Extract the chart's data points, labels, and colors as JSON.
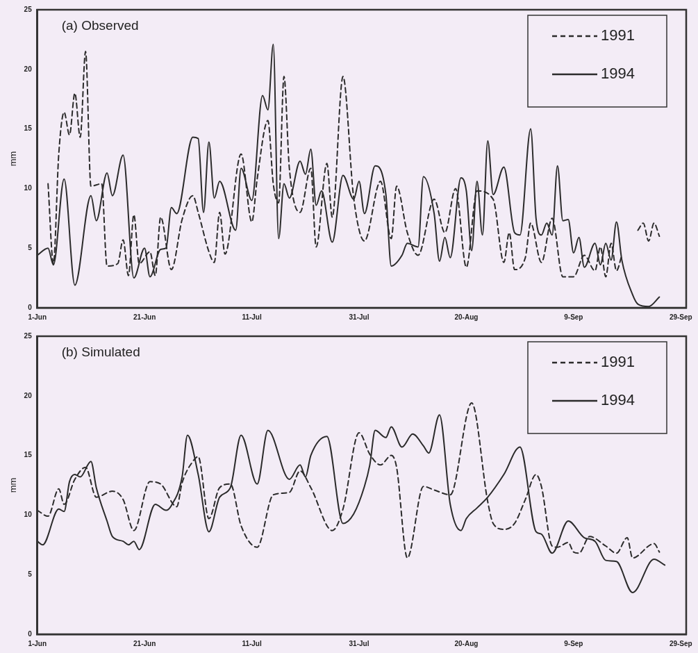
{
  "chart_data": [
    {
      "type": "line",
      "title": "(a) Observed",
      "ylabel": "mm",
      "legend": "top right",
      "xlim": [
        "--06-01",
        "--09-30"
      ],
      "xticks": [
        {
          "value": "--06-01",
          "label": "1-Jun"
        },
        {
          "value": "--06-21",
          "label": "21-Jun"
        },
        {
          "value": "--07-11",
          "label": "11-Jul"
        },
        {
          "value": "--07-31",
          "label": "31-Jul"
        },
        {
          "value": "--08-20",
          "label": "20-Aug"
        },
        {
          "value": "--09-09",
          "label": "9-Sep"
        },
        {
          "value": "--09-29",
          "label": "29-Sep"
        }
      ],
      "ylim": [
        0,
        25
      ],
      "yticks": [
        0,
        5,
        10,
        15,
        20,
        25
      ],
      "series": [
        {
          "name": "1991",
          "color": "#2b2b2b",
          "line_style": "dashed",
          "x": [
            "--06-03",
            "--06-04",
            "--06-05",
            "--06-06",
            "--06-07",
            "--06-08",
            "--06-09",
            "--06-10",
            "--06-11",
            "--06-13",
            "--06-14",
            "--06-16",
            "--06-17",
            "--06-18",
            "--06-19",
            "--06-20",
            "--06-22",
            "--06-23",
            "--06-24",
            "--06-26",
            "--06-28",
            "--06-30",
            "--07-01",
            "--07-03",
            "--07-04",
            "--07-05",
            "--07-06",
            "--07-09",
            "--07-11",
            "--07-12",
            "--07-14",
            "--07-15",
            "--07-16",
            "--07-17",
            "--07-18",
            "--07-20",
            "--07-22",
            "--07-23",
            "--07-25",
            "--07-26",
            "--07-28",
            "--07-30",
            "--08-01",
            "--08-04",
            "--08-06",
            "--08-07",
            "--08-09",
            "--08-11",
            "--08-14",
            "--08-16",
            "--08-18",
            "--08-20",
            "--08-22",
            "--08-25",
            "--08-27",
            "--08-28",
            "--08-29",
            "--08-31",
            "--09-01",
            "--09-03",
            "--09-05",
            "--09-07",
            "--09-09",
            "--09-11",
            "--09-13",
            "--09-14",
            "--09-15",
            "--09-16",
            "--09-17",
            "--09-18",
            "--09-19",
            "--09-21",
            "--09-22",
            "--09-23",
            "--09-24",
            "--09-25"
          ],
          "values": [
            10.4,
            3.7,
            12.9,
            16.4,
            14.5,
            18.0,
            14.3,
            21.5,
            10.2,
            10.4,
            3.5,
            3.7,
            5.7,
            2.7,
            7.8,
            3.7,
            4.7,
            2.7,
            7.6,
            3.2,
            7.4,
            9.4,
            8.0,
            4.7,
            3.8,
            8.0,
            4.5,
            12.9,
            7.2,
            10.8,
            15.7,
            10.4,
            8.8,
            19.4,
            11.7,
            8.0,
            11.7,
            5.1,
            12.1,
            7.6,
            19.4,
            9.2,
            5.6,
            10.6,
            5.8,
            10.2,
            6.3,
            4.4,
            9.1,
            6.3,
            10.0,
            3.4,
            9.8,
            9.1,
            3.8,
            6.3,
            3.2,
            4.2,
            7.1,
            3.8,
            7.5,
            2.6,
            2.6,
            4.4,
            3.1,
            5.1,
            2.6,
            5.4,
            3.1,
            4.4,
            null,
            6.5,
            7.1,
            5.6,
            7.1,
            6.0
          ]
        },
        {
          "name": "1994",
          "color": "#2b2b2b",
          "line_style": "solid",
          "x": [
            "--06-01",
            "--06-03",
            "--06-04",
            "--06-06",
            "--06-08",
            "--06-11",
            "--06-12",
            "--06-14",
            "--06-15",
            "--06-17",
            "--06-19",
            "--06-21",
            "--06-22",
            "--06-24",
            "--06-25",
            "--06-26",
            "--06-27",
            "--06-30",
            "--07-01",
            "--07-02",
            "--07-03",
            "--07-04",
            "--07-05",
            "--07-08",
            "--07-09",
            "--07-11",
            "--07-13",
            "--07-14",
            "--07-15",
            "--07-16",
            "--07-17",
            "--07-18",
            "--07-20",
            "--07-21",
            "--07-22",
            "--07-23",
            "--07-24",
            "--07-26",
            "--07-28",
            "--07-30",
            "--07-31",
            "--08-01",
            "--08-03",
            "--08-05",
            "--08-06",
            "--08-08",
            "--08-09",
            "--08-11",
            "--08-12",
            "--08-14",
            "--08-15",
            "--08-16",
            "--08-17",
            "--08-19",
            "--08-20",
            "--08-21",
            "--08-22",
            "--08-23",
            "--08-24",
            "--08-25",
            "--08-27",
            "--08-29",
            "--08-30",
            "--09-01",
            "--09-02",
            "--09-03",
            "--09-04",
            "--09-05",
            "--09-06",
            "--09-07",
            "--09-08",
            "--09-09",
            "--09-10",
            "--09-11",
            "--09-13",
            "--09-14",
            "--09-15",
            "--09-16",
            "--09-17",
            "--09-18",
            "--09-20",
            "--09-21",
            "--09-23",
            "--09-25"
          ],
          "values": [
            4.4,
            5.0,
            3.6,
            10.8,
            1.9,
            9.4,
            7.3,
            11.3,
            9.4,
            12.8,
            2.5,
            5.0,
            2.6,
            4.9,
            5.0,
            8.4,
            7.9,
            14.3,
            14.2,
            8.0,
            13.9,
            9.2,
            10.6,
            6.5,
            11.7,
            9.0,
            17.8,
            16.6,
            22.1,
            5.8,
            10.4,
            9.2,
            12.3,
            11.2,
            13.3,
            8.6,
            9.8,
            5.5,
            11.1,
            9.1,
            10.6,
            7.9,
            11.9,
            9.5,
            3.5,
            4.4,
            5.4,
            5.1,
            11.0,
            7.9,
            3.9,
            5.9,
            4.2,
            10.9,
            9.8,
            4.8,
            10.6,
            6.1,
            14.0,
            9.5,
            11.8,
            6.3,
            6.1,
            15.0,
            7.5,
            6.1,
            7.1,
            6.1,
            11.9,
            7.3,
            7.4,
            4.6,
            5.9,
            3.4,
            5.4,
            3.6,
            5.4,
            4.0,
            7.2,
            4.0,
            1.1,
            0.3,
            0.1,
            0.9
          ]
        }
      ]
    },
    {
      "type": "line",
      "title": "(b) Simulated",
      "ylabel": "mm",
      "legend": "top right",
      "xlim": [
        "--06-01",
        "--09-30"
      ],
      "xticks": [
        {
          "value": "--06-01",
          "label": "1-Jun"
        },
        {
          "value": "--06-21",
          "label": "21-Jun"
        },
        {
          "value": "--07-11",
          "label": "11-Jul"
        },
        {
          "value": "--07-31",
          "label": "31-Jul"
        },
        {
          "value": "--08-20",
          "label": "20-Aug"
        },
        {
          "value": "--09-09",
          "label": "9-Sep"
        },
        {
          "value": "--09-29",
          "label": "29-Sep"
        }
      ],
      "ylim": [
        0,
        25
      ],
      "yticks": [
        0,
        5,
        10,
        15,
        20,
        25
      ],
      "series": [
        {
          "name": "1991",
          "color": "#2b2b2b",
          "line_style": "dashed",
          "x": [
            "--06-01",
            "--06-03",
            "--06-05",
            "--06-06",
            "--06-08",
            "--06-10",
            "--06-12",
            "--06-15",
            "--06-17",
            "--06-19",
            "--06-22",
            "--06-24",
            "--06-27",
            "--06-28",
            "--06-30",
            "--07-01",
            "--07-03",
            "--07-05",
            "--07-07",
            "--07-09",
            "--07-12",
            "--07-15",
            "--07-18",
            "--07-20",
            "--07-22",
            "--07-26",
            "--07-28",
            "--07-31",
            "--08-02",
            "--08-04",
            "--08-06",
            "--08-07",
            "--08-09",
            "--08-12",
            "--08-14",
            "--08-17",
            "--08-21",
            "--08-24",
            "--08-25",
            "--08-27",
            "--08-29",
            "--08-31",
            "--09-02",
            "--09-03",
            "--09-05",
            "--09-06",
            "--09-08",
            "--09-09",
            "--09-10",
            "--09-12",
            "--09-15",
            "--09-17",
            "--09-19",
            "--09-20",
            "--09-24",
            "--09-25"
          ],
          "values": [
            10.4,
            9.9,
            12.2,
            10.9,
            13.0,
            14.0,
            11.5,
            12.0,
            11.3,
            8.7,
            12.8,
            12.6,
            10.7,
            12.7,
            14.5,
            14.9,
            9.7,
            12.3,
            12.6,
            9.1,
            7.3,
            11.7,
            11.9,
            13.7,
            12.3,
            8.7,
            10.5,
            16.9,
            15.1,
            14.2,
            15.0,
            14.0,
            6.4,
            12.4,
            12.1,
            11.7,
            19.4,
            11.1,
            9.3,
            8.8,
            9.3,
            11.3,
            13.4,
            12.4,
            7.4,
            7.3,
            7.7,
            6.9,
            6.8,
            8.2,
            7.4,
            6.8,
            8.1,
            6.4,
            7.6,
            6.9
          ]
        },
        {
          "name": "1994",
          "color": "#2b2b2b",
          "line_style": "solid",
          "x": [
            "--06-01",
            "--06-02",
            "--06-05",
            "--06-06",
            "--06-07",
            "--06-08",
            "--06-09",
            "--06-11",
            "--06-12",
            "--06-14",
            "--06-15",
            "--06-17",
            "--06-18",
            "--06-19",
            "--06-20",
            "--06-23",
            "--06-25",
            "--06-26",
            "--06-28",
            "--06-29",
            "--07-01",
            "--07-03",
            "--07-05",
            "--07-07",
            "--07-09",
            "--07-12",
            "--07-14",
            "--07-18",
            "--07-20",
            "--07-21",
            "--07-22",
            "--07-25",
            "--07-28",
            "--07-30",
            "--08-01",
            "--08-02",
            "--08-03",
            "--08-05",
            "--08-06",
            "--08-08",
            "--08-10",
            "--08-12",
            "--08-13",
            "--08-15",
            "--08-17",
            "--08-19",
            "--08-20",
            "--08-22",
            "--08-24",
            "--08-27",
            "--08-30",
            "--09-02",
            "--09-03",
            "--09-05",
            "--09-08",
            "--09-11",
            "--09-13",
            "--09-15",
            "--09-17",
            "--09-20",
            "--09-24",
            "--09-26"
          ],
          "values": [
            7.8,
            7.5,
            10.5,
            10.3,
            12.8,
            13.4,
            13.2,
            14.5,
            12.3,
            9.5,
            8.2,
            7.8,
            7.5,
            7.8,
            7.1,
            10.9,
            10.4,
            10.8,
            13.2,
            16.7,
            13.4,
            8.6,
            11.5,
            12.3,
            16.7,
            12.6,
            17.1,
            13.0,
            14.2,
            13.2,
            15.0,
            16.6,
            9.3,
            10.1,
            12.4,
            14.2,
            17.1,
            16.5,
            17.4,
            15.7,
            16.8,
            15.8,
            15.2,
            18.4,
            10.9,
            8.7,
            9.7,
            10.6,
            11.5,
            13.4,
            15.7,
            8.6,
            8.4,
            6.8,
            9.5,
            8.1,
            7.8,
            6.2,
            6.1,
            3.5,
            6.3,
            5.8
          ]
        }
      ]
    }
  ]
}
